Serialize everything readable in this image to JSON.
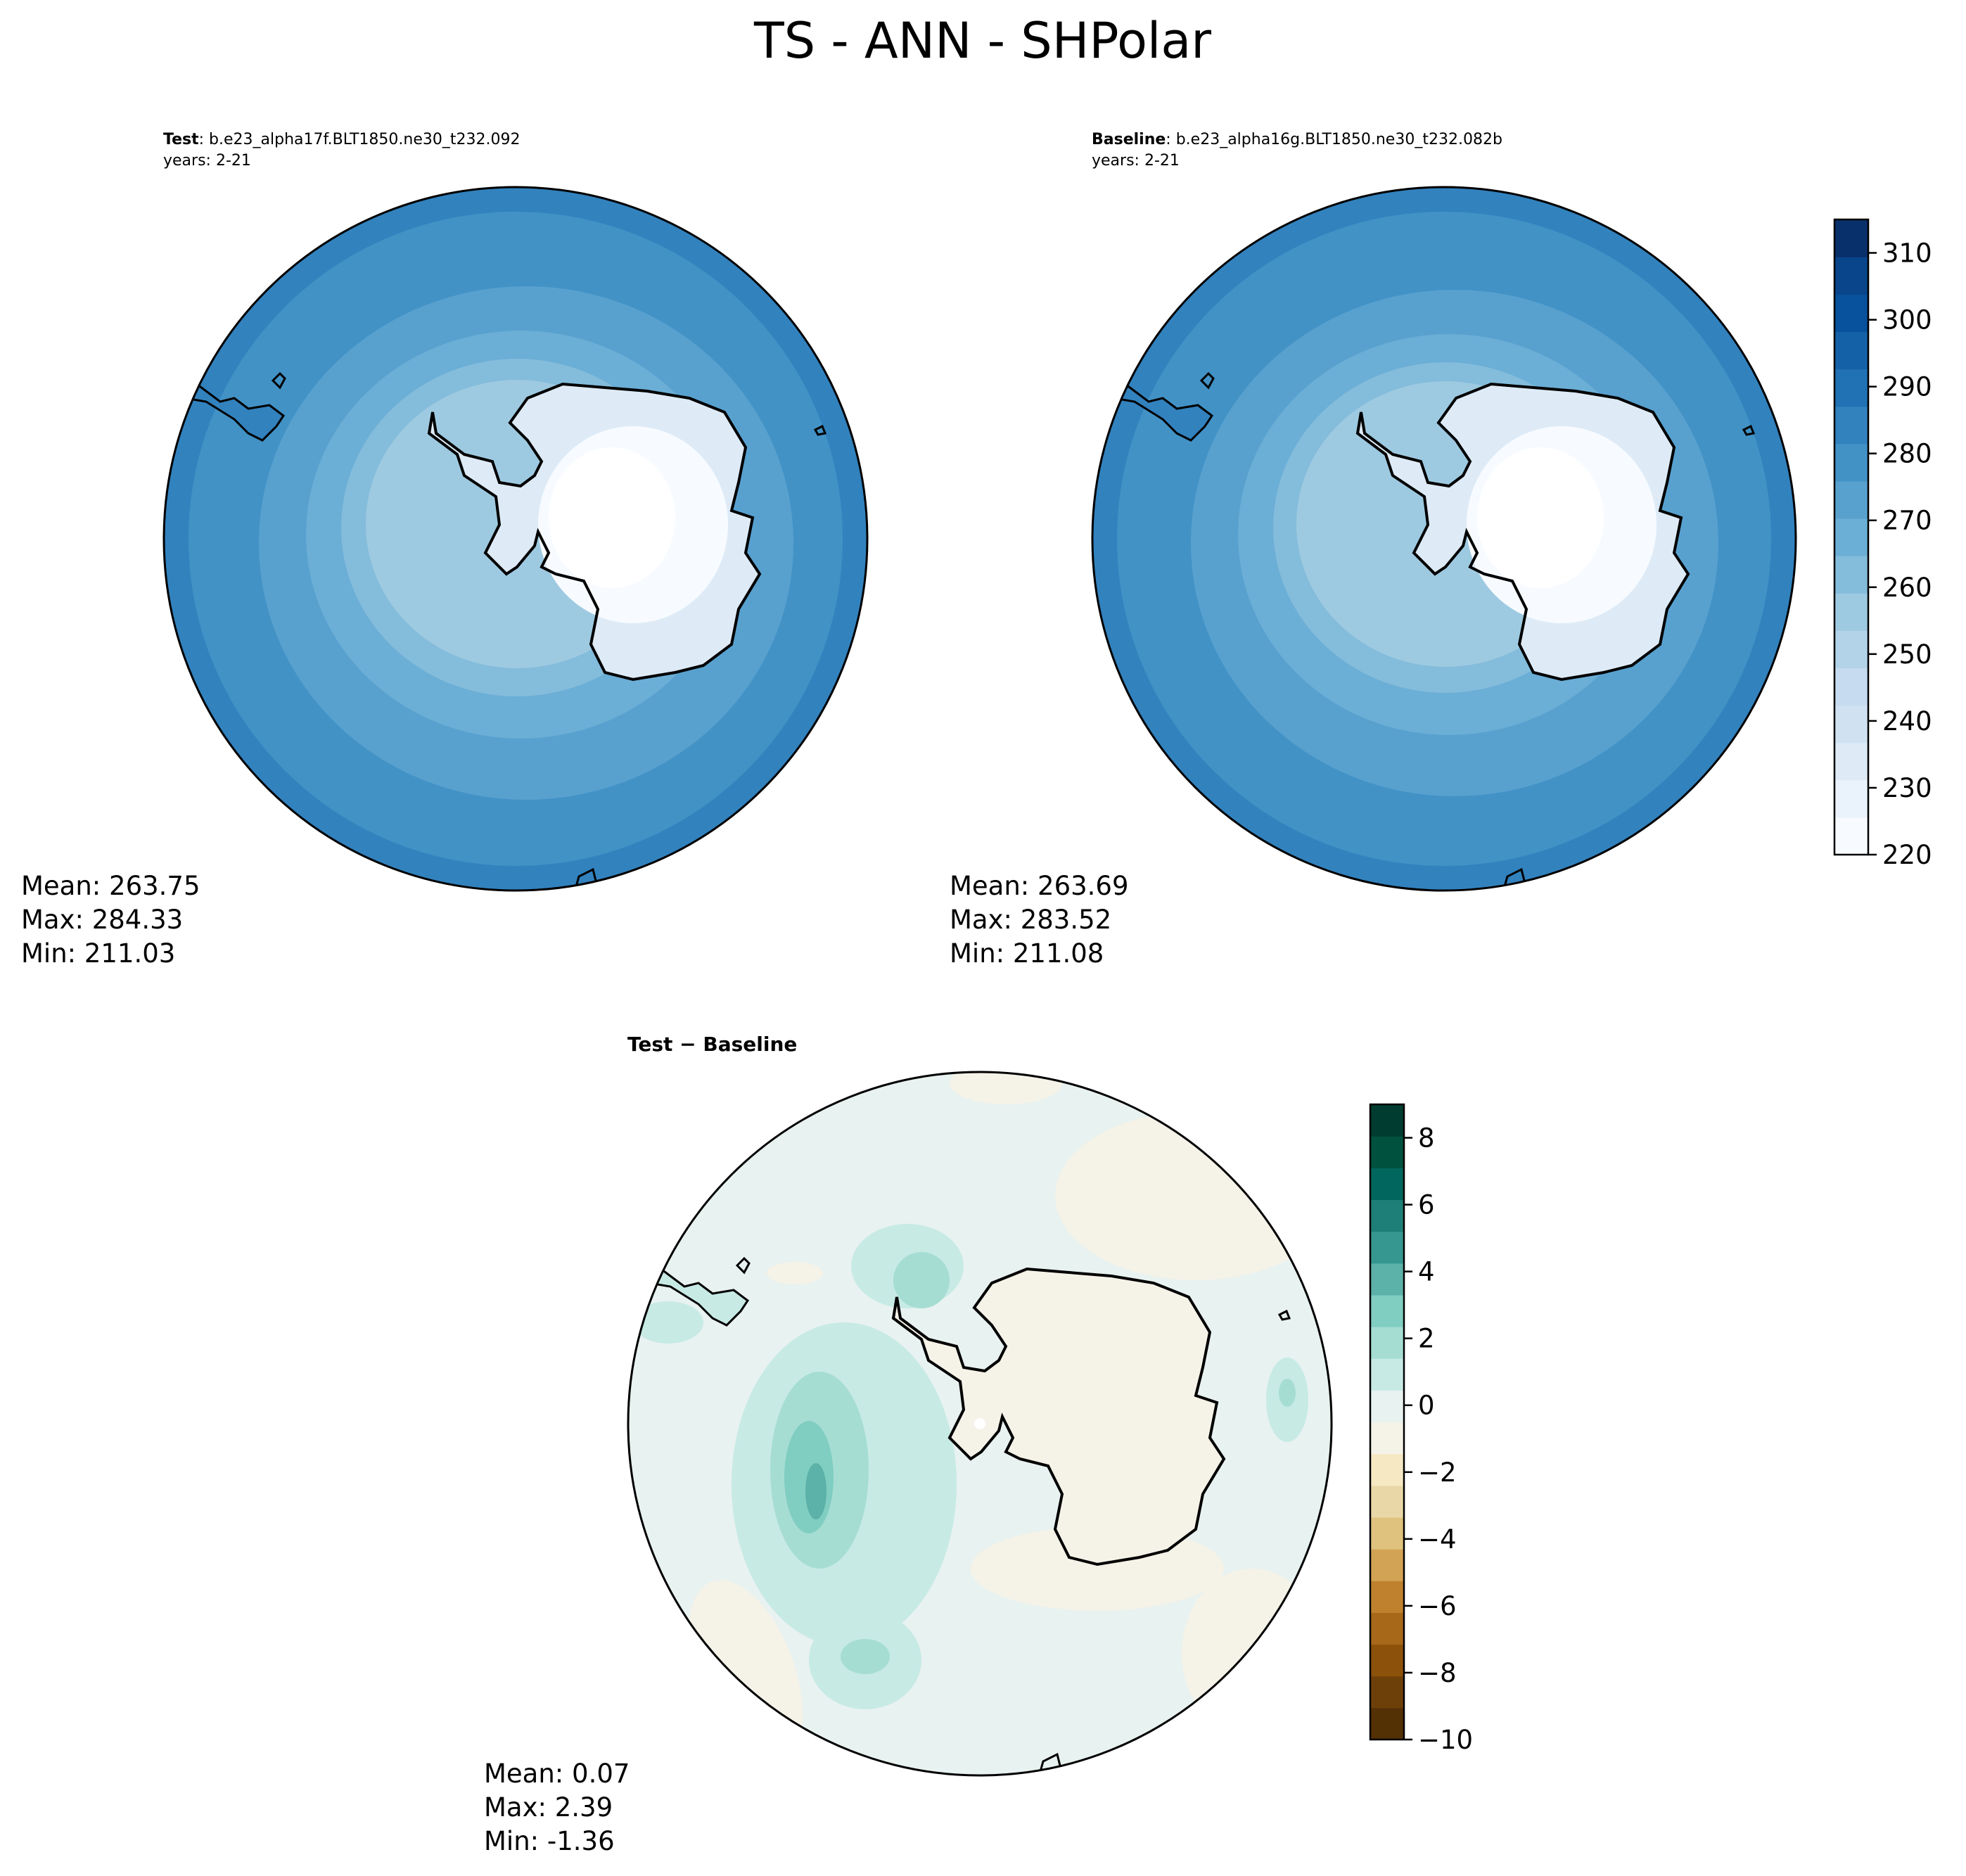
{
  "figure": {
    "title": "TS - ANN - SHPolar"
  },
  "colors": {
    "blues": [
      "#f7fbff",
      "#eaf3fb",
      "#deebf7",
      "#d0e2f2",
      "#c6dbef",
      "#b2d3e8",
      "#9ecae1",
      "#84bcdb",
      "#6baed6",
      "#58a1cf",
      "#4292c6",
      "#3282be",
      "#2171b5",
      "#1561a8",
      "#08519c",
      "#08458a",
      "#08306b"
    ],
    "diverging": [
      "#543005",
      "#6e4009",
      "#8c510a",
      "#a8681a",
      "#bf812d",
      "#d2a354",
      "#dfc27d",
      "#ead7a8",
      "#f6e8c3",
      "#f5f2e8",
      "#e8f2f0",
      "#c7eae5",
      "#a6ddd3",
      "#80cdc1",
      "#5cb1a8",
      "#35978f",
      "#1d7f77",
      "#01665e",
      "#00523e",
      "#003c30"
    ],
    "coastline": "#000000"
  },
  "chart_data": [
    {
      "type": "heatmap",
      "name": "test",
      "title_bold": "Test",
      "title_rest": ": b.e23_alpha17f.BLT1850.ne30_t232.092",
      "subtitle": "years: 2-21",
      "stats": [
        "Mean: 263.75",
        "Max: 284.33",
        "Min: 211.03"
      ],
      "value_range": [
        211.03,
        284.33
      ]
    },
    {
      "type": "heatmap",
      "name": "baseline",
      "title_bold": "Baseline",
      "title_rest": ": b.e23_alpha16g.BLT1850.ne30_t232.082b",
      "subtitle": "years: 2-21",
      "stats": [
        "Mean: 263.69",
        "Max: 283.52",
        "Min: 211.08"
      ],
      "value_range": [
        211.08,
        283.52
      ]
    },
    {
      "type": "heatmap",
      "name": "difference",
      "title_bold": "Test − Baseline",
      "stats": [
        "Mean:  0.07",
        "Max:  2.39",
        "Min: -1.36"
      ],
      "value_range": [
        -1.36,
        2.39
      ]
    }
  ],
  "colorbars": {
    "main": {
      "ticks": [
        "220",
        "230",
        "240",
        "250",
        "260",
        "270",
        "280",
        "290",
        "300",
        "310"
      ],
      "tick_values": [
        220,
        230,
        240,
        250,
        260,
        270,
        280,
        290,
        300,
        310
      ],
      "range": [
        220,
        315
      ]
    },
    "diff": {
      "ticks": [
        "−10",
        "−8",
        "−6",
        "−4",
        "−2",
        "0",
        "2",
        "4",
        "6",
        "8"
      ],
      "tick_values": [
        -10,
        -8,
        -6,
        -4,
        -2,
        0,
        2,
        4,
        6,
        8
      ],
      "range": [
        -10,
        9
      ]
    }
  }
}
